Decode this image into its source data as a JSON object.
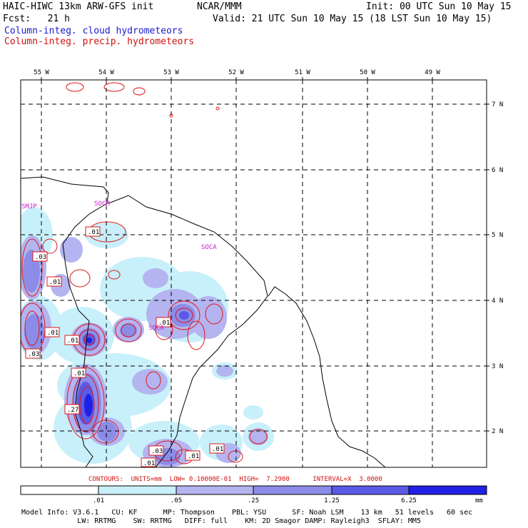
{
  "header": {
    "model": "HAIC-HIWC 13km ARW-GFS init",
    "org": "NCAR/MMM",
    "init": "Init: 00 UTC Sun 10 May 15",
    "fcst": "Fcst:   21 h",
    "valid": "Valid: 21 UTC Sun 10 May 15 (18 LST Sun 10 May 15)",
    "field1": "Column-integ. cloud hydrometeors",
    "field2": "Column-integ. precip. hydrometeors"
  },
  "map": {
    "lon_labels": [
      "55 W",
      "54 W",
      "53 W",
      "52 W",
      "51 W",
      "50 W",
      "49 W"
    ],
    "lat_labels": [
      "7 N",
      "6 N",
      "5 N",
      "4 N",
      "3 N",
      "2 N"
    ],
    "stations": [
      "SMJP",
      "SOCM",
      "SOCA",
      "SOCA"
    ],
    "contour_labels": [
      ".01",
      ".03",
      ".01",
      ".01",
      ".03",
      ".01",
      ".01",
      ".01",
      ".27",
      ".01",
      ".03",
      ".01",
      ".01"
    ]
  },
  "contours_line": "CONTOURS:  UNITS=mm  LOW= 0.10000E-01  HIGH=  7.2900      INTERVAL=X  3.0000",
  "colorbar": {
    "ticks": [
      ".01",
      ".05",
      ".25",
      "1.25",
      "6.25"
    ],
    "unit": "mm",
    "colors": [
      "#ffffff",
      "#c8f0fa",
      "#b4b4f0",
      "#8c8ce8",
      "#5a5ae6",
      "#2020e6"
    ]
  },
  "model_info": {
    "line1": "Model Info: V3.6.1   CU: KF      MP: Thompson    PBL: YSU      SF: Noah LSM    13 km   51 levels   60 sec",
    "line2": "             LW: RRTMG    SW: RRTMG   DIFF: full    KM: 2D Smagor DAMP: Rayleigh3  SFLAY: MM5"
  }
}
